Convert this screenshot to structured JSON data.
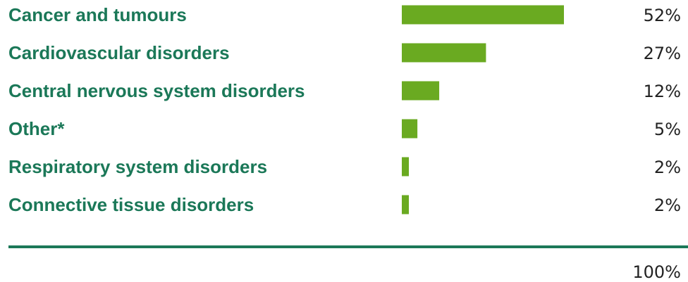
{
  "colors": {
    "bar": "#6aaa21",
    "label": "#1b7858",
    "divider": "#1b7858",
    "value_text": "#222222"
  },
  "chart_data": {
    "type": "bar",
    "orientation": "horizontal",
    "categories": [
      "Cancer and tumours",
      "Cardiovascular disorders",
      "Central nervous system disorders",
      "Other*",
      "Respiratory system disorders",
      "Connective tissue disorders"
    ],
    "values": [
      52,
      27,
      12,
      5,
      2,
      2
    ],
    "value_labels": [
      "52%",
      "27%",
      "12%",
      "5%",
      "2%",
      "2%"
    ],
    "total_label": "100%",
    "unit": "%",
    "xlim": [
      0,
      52
    ],
    "grid": false,
    "legend": "none"
  }
}
